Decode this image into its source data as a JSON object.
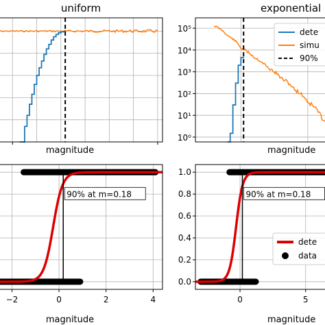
{
  "chart_data": [
    {
      "type": "line",
      "title": "uniform",
      "xlabel": "magnitude",
      "ylabel": "",
      "xlim": [
        -2.8,
        4.2
      ],
      "ylim": [
        0,
        1.12
      ],
      "grid": true,
      "series": [
        {
          "name": "",
          "color": "#1f77b4",
          "step": true,
          "x": [
            -1.7,
            -1.5,
            -1.4,
            -1.3,
            -1.2,
            -1.1,
            -1.0,
            -0.9,
            -0.8,
            -0.7,
            -0.6,
            -0.5,
            -0.4,
            -0.3,
            -0.2,
            -0.1,
            0.0,
            0.1,
            0.18
          ],
          "y": [
            0.0,
            0.14,
            0.24,
            0.34,
            0.43,
            0.52,
            0.6,
            0.67,
            0.73,
            0.79,
            0.84,
            0.88,
            0.92,
            0.95,
            0.97,
            0.985,
            0.993,
            0.998,
            1.0
          ]
        },
        {
          "name": "",
          "color": "#ff7f0e",
          "step": false,
          "x": [
            -2.8,
            -2.0,
            -1.0,
            0.0,
            1.0,
            2.0,
            3.0,
            4.0
          ],
          "y": [
            1.0,
            1.0,
            1.0,
            1.0,
            1.0,
            1.0,
            1.0,
            1.0
          ]
        }
      ],
      "vline": {
        "x": 0.18,
        "style": "dashed"
      }
    },
    {
      "type": "line",
      "title": "exponential",
      "xlabel": "magnitude",
      "ylabel": "",
      "yscale": "log",
      "xlim": [
        -3.4,
        6.8
      ],
      "ylim": [
        0.6,
        300000
      ],
      "ytick_labels": [
        "10⁰",
        "10¹",
        "10²",
        "10³",
        "10⁴",
        "10⁵"
      ],
      "grid": true,
      "series": [
        {
          "name": "dete",
          "color": "#1f77b4",
          "step": true,
          "x": [
            -1.0,
            -0.8,
            -0.6,
            -0.4,
            -0.2,
            0.0,
            0.2
          ],
          "y": [
            0.6,
            1.5,
            30,
            300,
            2000,
            4500,
            5000
          ]
        },
        {
          "name": "simu",
          "color": "#ff7f0e",
          "step": false,
          "x": [
            -2.0,
            -1.0,
            0.0,
            1.0,
            2.0,
            3.0,
            4.0,
            5.0,
            6.0,
            6.8
          ],
          "y": [
            130000,
            45000,
            12000,
            4500,
            1500,
            500,
            150,
            40,
            8,
            3
          ]
        }
      ],
      "vline": {
        "x": 0.2,
        "style": "dashed",
        "label": "90%"
      }
    },
    {
      "type": "line",
      "title": "",
      "xlabel": "magnitude",
      "ylabel": "",
      "xlim": [
        -2.8,
        4.4
      ],
      "ylim": [
        -0.07,
        1.07
      ],
      "xtick_labels": [
        "−2",
        "0",
        "2",
        "4"
      ],
      "grid": true,
      "annotation": "90% at m=0.18",
      "series": [
        {
          "name": "",
          "color": "#dd0000",
          "type": "sigmoid",
          "center": -0.25,
          "scale": 0.2
        }
      ],
      "points": {
        "color": "#000000",
        "zeros_x": [
          -2.8,
          0.9
        ],
        "ones_x": [
          -1.5,
          4.1
        ]
      },
      "vline": {
        "x": 0.18,
        "style": "solid"
      }
    },
    {
      "type": "line",
      "title": "",
      "xlabel": "magnitude",
      "ylabel": "",
      "xlim": [
        -3.4,
        7.0
      ],
      "ylim": [
        -0.07,
        1.07
      ],
      "xtick_labels": [
        "0",
        "5"
      ],
      "ytick_labels": [
        "0.0",
        "0.2",
        "0.4",
        "0.6",
        "0.8",
        "1.0"
      ],
      "grid": true,
      "annotation": "90% at m=0.18",
      "series": [
        {
          "name": "dete",
          "color": "#dd0000",
          "type": "sigmoid",
          "center": -0.3,
          "scale": 0.25
        }
      ],
      "points": {
        "name": "data",
        "color": "#000000",
        "zeros_x": [
          -3.0,
          1.2
        ],
        "ones_x": [
          -0.8,
          7.0
        ]
      },
      "vline": {
        "x": 0.18,
        "style": "solid"
      }
    }
  ]
}
